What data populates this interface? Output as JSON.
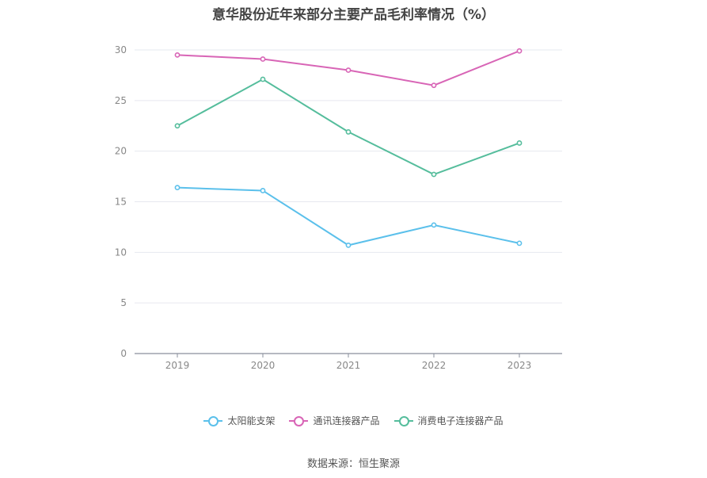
{
  "chart_data": {
    "type": "line",
    "title": "意华股份近年来部分主要产品毛利率情况（%）",
    "categories": [
      "2019",
      "2020",
      "2021",
      "2022",
      "2023"
    ],
    "ylim": [
      0,
      30
    ],
    "yticks": [
      0,
      5,
      10,
      15,
      20,
      25,
      30
    ],
    "grid": true,
    "legend_position": "bottom",
    "series": [
      {
        "name": "太阳能支架",
        "color": "#5bc0eb",
        "values": [
          16.4,
          16.1,
          10.7,
          12.7,
          10.9
        ]
      },
      {
        "name": "通讯连接器产品",
        "color": "#d865b6",
        "values": [
          29.5,
          29.1,
          28.0,
          26.5,
          29.9
        ]
      },
      {
        "name": "消费电子连接器产品",
        "color": "#55bd9c",
        "values": [
          22.5,
          27.1,
          21.9,
          17.7,
          20.8
        ]
      }
    ]
  },
  "source": "数据来源：恒生聚源"
}
